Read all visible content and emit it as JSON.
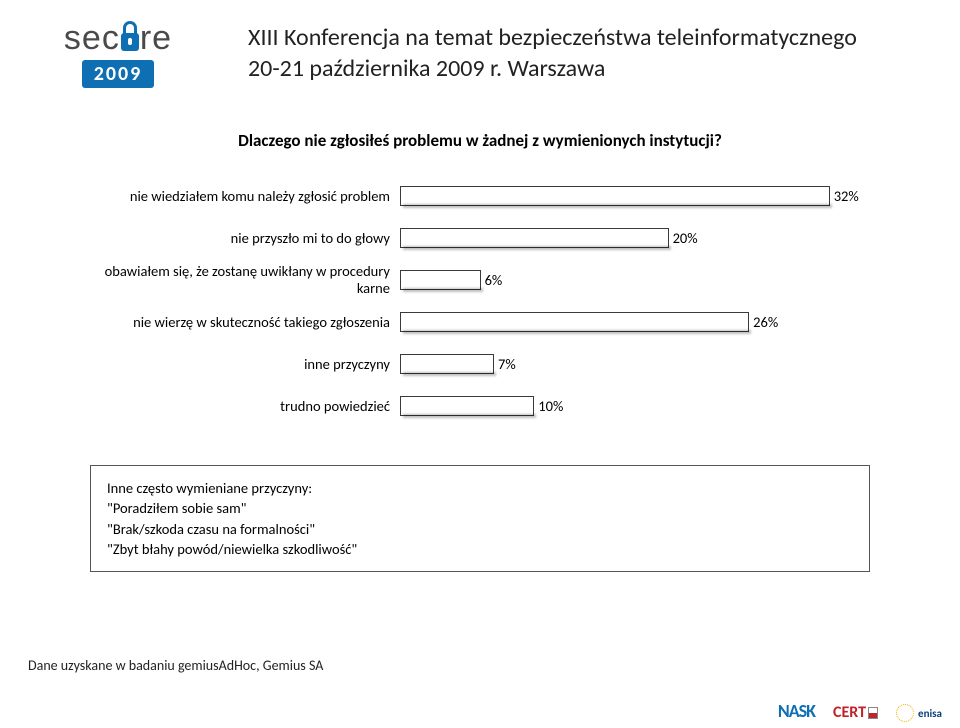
{
  "header": {
    "logo_word_left": "sec",
    "logo_word_right": "re",
    "year": "2009",
    "title_line1": "XIII Konferencja na temat bezpieczeństwa teleinformatycznego",
    "title_line2": "20-21 października 2009 r. Warszawa"
  },
  "chart": {
    "type": "bar-horizontal",
    "title": "Dlaczego nie zgłosiłeś problemu w żadnej z wymienionych instytucji?",
    "x_max": 35,
    "bar_color": "#ffffff",
    "bar_border_color": "#3a3a3a",
    "background_color": "#ffffff",
    "label_fontsize": 14.5,
    "value_fontsize": 14.5,
    "title_fontsize": 17,
    "title_fontweight": "bold",
    "rows": [
      {
        "label": "nie wiedziałem komu należy zgłosić problem",
        "value": 32,
        "value_label": "32%"
      },
      {
        "label": "nie przyszło mi to do głowy",
        "value": 20,
        "value_label": "20%"
      },
      {
        "label": "obawiałem się, że zostanę uwikłany w procedury karne",
        "value": 6,
        "value_label": "6%"
      },
      {
        "label": "nie wierzę w skuteczność takiego zgłoszenia",
        "value": 26,
        "value_label": "26%"
      },
      {
        "label": "inne przyczyny",
        "value": 7,
        "value_label": "7%"
      },
      {
        "label": "trudno powiedzieć",
        "value": 10,
        "value_label": "10%"
      }
    ]
  },
  "note": {
    "lead": "Inne często wymieniane przyczyny:",
    "line1": "\"Poradziłem sobie sam\"",
    "line2": "\"Brak/szkoda czasu na formalności\"",
    "line3": "\"Zbyt błahy powód/niewielka szkodliwość\""
  },
  "footer": {
    "source": "Dane uzyskane w badaniu gemiusAdHoc, Gemius SA"
  },
  "footer_logos": {
    "nask": "NASK",
    "cert": "CERT",
    "enisa": "enisa"
  }
}
